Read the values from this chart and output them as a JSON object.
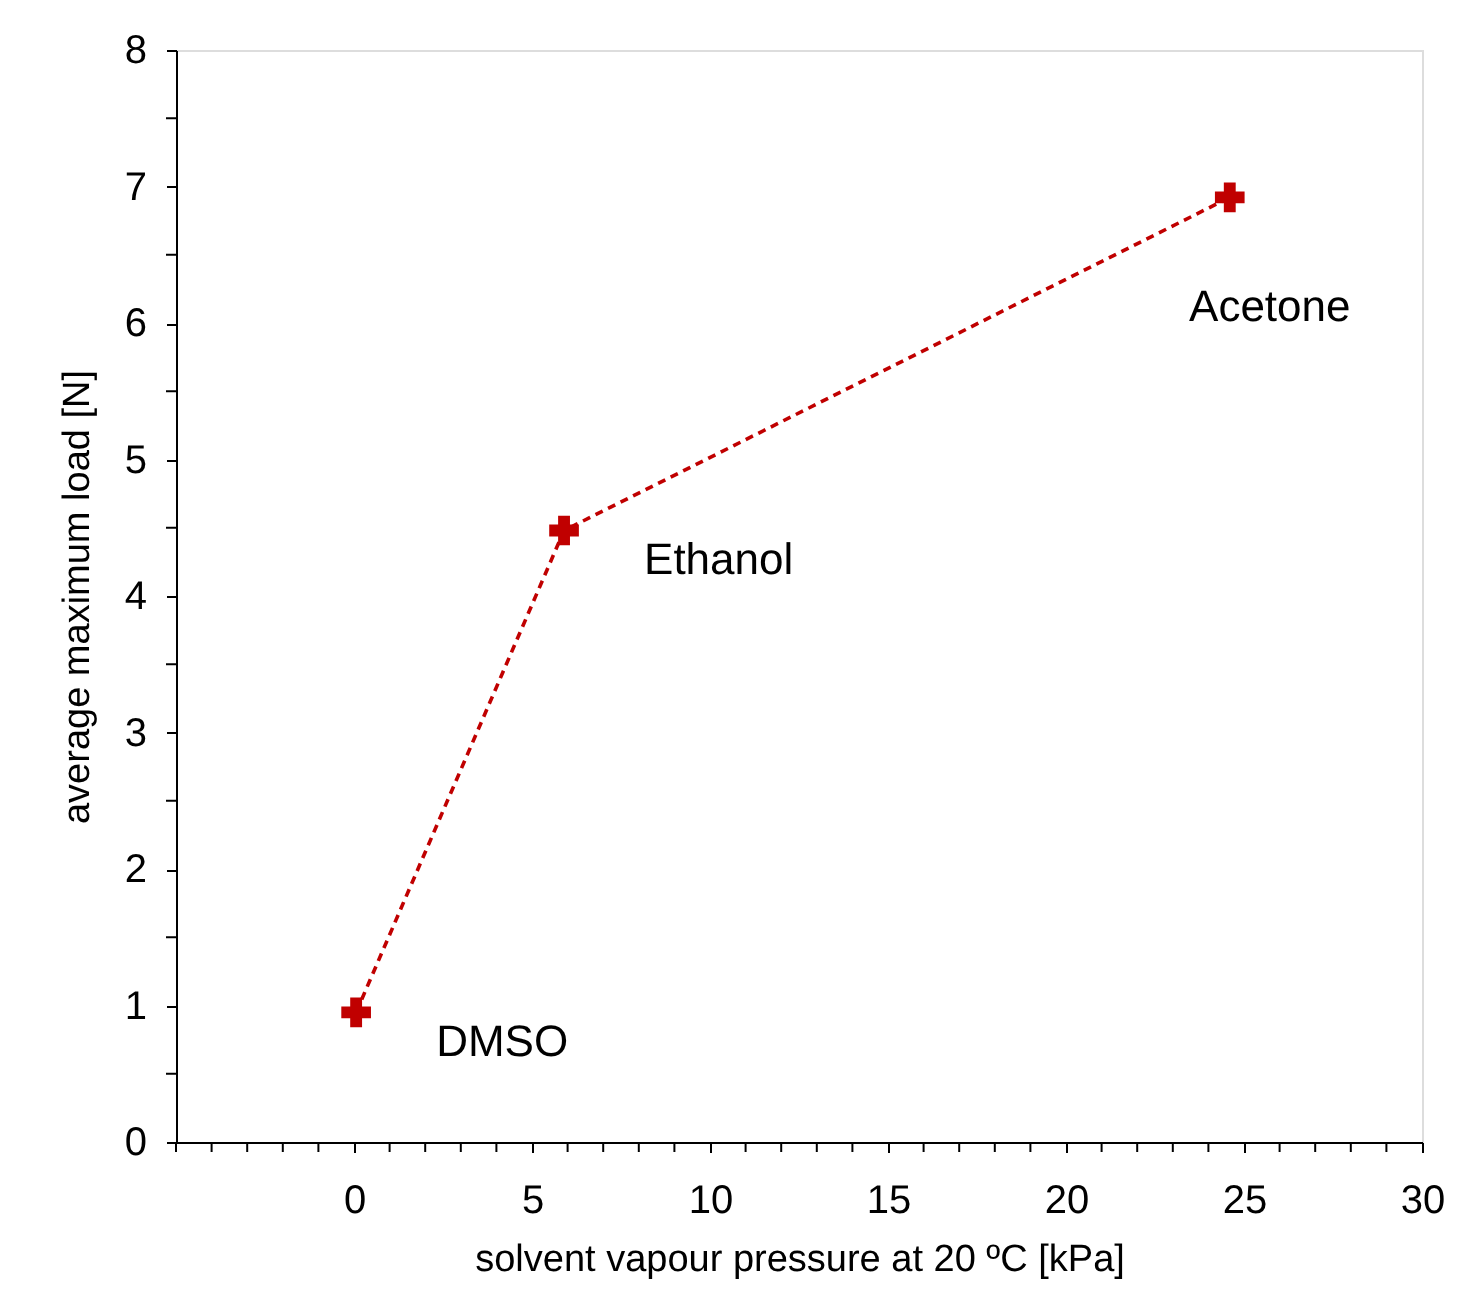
{
  "chart_data": {
    "type": "line",
    "xlabel": "solvent vapour pressure at 20 ºC [kPa]",
    "ylabel": "average maximum load [N]",
    "x": [
      0.06,
      5.9,
      24.6
    ],
    "series": [
      {
        "color": "#c00000",
        "values": [
          0.95,
          4.48,
          6.92
        ]
      }
    ],
    "marker": "cross",
    "line_style": "dashed",
    "grid": false,
    "xlim": [
      -5,
      30
    ],
    "xticks": [
      {
        "value": -5,
        "label": null
      },
      {
        "value": -4,
        "label": null
      },
      {
        "value": -3,
        "label": null
      },
      {
        "value": -2,
        "label": null
      },
      {
        "value": -1,
        "label": null
      },
      0,
      {
        "value": 1,
        "label": null
      },
      {
        "value": 2,
        "label": null
      },
      {
        "value": 3,
        "label": null
      },
      {
        "value": 4,
        "label": null
      },
      5,
      {
        "value": 6,
        "label": null
      },
      {
        "value": 7,
        "label": null
      },
      {
        "value": 8,
        "label": null
      },
      {
        "value": 9,
        "label": null
      },
      10,
      {
        "value": 11,
        "label": null
      },
      {
        "value": 12,
        "label": null
      },
      {
        "value": 13,
        "label": null
      },
      {
        "value": 14,
        "label": null
      },
      15,
      {
        "value": 16,
        "label": null
      },
      {
        "value": 17,
        "label": null
      },
      {
        "value": 18,
        "label": null
      },
      {
        "value": 19,
        "label": null
      },
      20,
      {
        "value": 21,
        "label": null
      },
      {
        "value": 22,
        "label": null
      },
      {
        "value": 23,
        "label": null
      },
      {
        "value": 24,
        "label": null
      },
      25,
      {
        "value": 26,
        "label": null
      },
      {
        "value": 27,
        "label": null
      },
      {
        "value": 28,
        "label": null
      },
      {
        "value": 29,
        "label": null
      },
      30
    ],
    "ylim": [
      0,
      8
    ],
    "yticks": [
      0,
      {
        "value": 0.5,
        "label": null
      },
      1,
      {
        "value": 1.5,
        "label": null
      },
      2,
      {
        "value": 2.5,
        "label": null
      },
      3,
      {
        "value": 3.5,
        "label": null
      },
      4,
      {
        "value": 4.5,
        "label": null
      },
      5,
      {
        "value": 5.5,
        "label": null
      },
      6,
      {
        "value": 6.5,
        "label": null
      },
      7,
      {
        "value": 7.5,
        "label": null
      },
      8
    ],
    "annotations": [
      {
        "text": "DMSO",
        "x": 0.06,
        "y": 0.95
      },
      {
        "text": "Ethanol",
        "x": 5.9,
        "y": 4.48
      },
      {
        "text": "Acetone",
        "x": 24.6,
        "y": 6.92
      }
    ]
  }
}
